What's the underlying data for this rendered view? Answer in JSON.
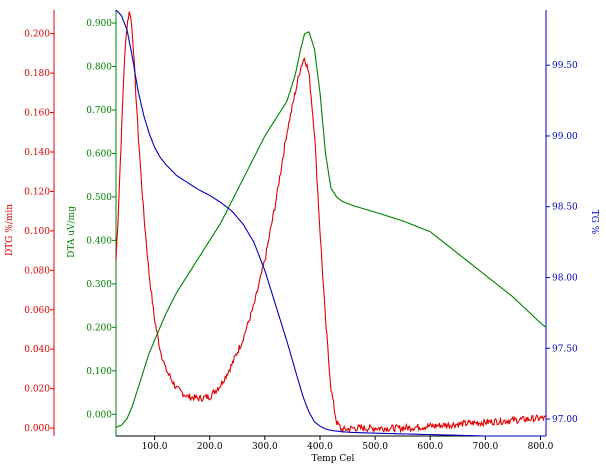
{
  "chart_data": {
    "type": "line",
    "title": "",
    "xlabel": "Temp Cel",
    "x_ticks": [
      "100.0",
      "200.0",
      "300.0",
      "400.0",
      "500.0",
      "600.0",
      "700.0",
      "800.0"
    ],
    "xlim": [
      30,
      810
    ],
    "grid": false,
    "axes": {
      "dtg": {
        "label": "DTG %/min",
        "color": "#e00000",
        "ylim": [
          -0.004,
          0.212
        ],
        "ticks": [
          "0.000",
          "0.020",
          "0.040",
          "0.060",
          "0.080",
          "0.100",
          "0.120",
          "0.140",
          "0.160",
          "0.180",
          "0.200"
        ]
      },
      "dta": {
        "label": "DTA uV/mg",
        "color": "#008000",
        "ylim": [
          -0.05,
          0.93
        ],
        "ticks": [
          "0.000",
          "0.100",
          "0.200",
          "0.300",
          "0.400",
          "0.500",
          "0.600",
          "0.700",
          "0.800",
          "0.900"
        ]
      },
      "tg": {
        "label": "TG %",
        "color": "#0000c0",
        "ylim": [
          96.88,
          99.89
        ],
        "ticks": [
          "97.00",
          "97.50",
          "98.00",
          "98.50",
          "99.00",
          "99.50"
        ]
      }
    },
    "series": [
      {
        "axis": "dtg",
        "color": "#e00000",
        "x": [
          30,
          35,
          40,
          45,
          50,
          55,
          60,
          65,
          70,
          80,
          90,
          100,
          110,
          120,
          140,
          160,
          180,
          200,
          220,
          240,
          260,
          280,
          300,
          320,
          340,
          355,
          365,
          372,
          380,
          390,
          400,
          410,
          420,
          430,
          440,
          460,
          500,
          550,
          600,
          650,
          700,
          750,
          800,
          810
        ],
        "y": [
          0.085,
          0.115,
          0.15,
          0.185,
          0.205,
          0.212,
          0.2,
          0.175,
          0.15,
          0.11,
          0.078,
          0.055,
          0.04,
          0.03,
          0.02,
          0.016,
          0.015,
          0.016,
          0.022,
          0.032,
          0.045,
          0.062,
          0.085,
          0.115,
          0.15,
          0.17,
          0.183,
          0.188,
          0.18,
          0.15,
          0.1,
          0.055,
          0.02,
          0.003,
          -0.001,
          0.0,
          0.0,
          0.0,
          0.001,
          0.002,
          0.003,
          0.004,
          0.005,
          0.005
        ],
        "noise": 0.0035
      },
      {
        "axis": "dta",
        "color": "#008000",
        "x": [
          30,
          40,
          50,
          60,
          70,
          80,
          90,
          100,
          120,
          140,
          160,
          180,
          200,
          220,
          240,
          260,
          280,
          300,
          320,
          340,
          355,
          365,
          372,
          380,
          390,
          400,
          410,
          420,
          430,
          440,
          460,
          500,
          550,
          600,
          620,
          650,
          700,
          750,
          800,
          810
        ],
        "y": [
          -0.03,
          -0.025,
          -0.01,
          0.02,
          0.06,
          0.1,
          0.14,
          0.17,
          0.23,
          0.28,
          0.32,
          0.36,
          0.4,
          0.44,
          0.49,
          0.54,
          0.59,
          0.64,
          0.68,
          0.72,
          0.78,
          0.84,
          0.875,
          0.88,
          0.84,
          0.74,
          0.6,
          0.52,
          0.5,
          0.49,
          0.48,
          0.465,
          0.445,
          0.42,
          0.4,
          0.37,
          0.32,
          0.27,
          0.21,
          0.2
        ]
      },
      {
        "axis": "tg",
        "color": "#0000c0",
        "x": [
          30,
          40,
          50,
          60,
          70,
          80,
          90,
          100,
          110,
          120,
          140,
          160,
          180,
          200,
          220,
          240,
          260,
          280,
          300,
          320,
          340,
          360,
          370,
          380,
          390,
          400,
          410,
          420,
          430,
          440,
          460,
          500,
          550,
          600,
          650,
          700,
          750,
          800,
          810
        ],
        "y": [
          99.89,
          99.85,
          99.75,
          99.55,
          99.32,
          99.15,
          99.02,
          98.92,
          98.85,
          98.8,
          98.72,
          98.67,
          98.62,
          98.58,
          98.53,
          98.47,
          98.38,
          98.25,
          98.05,
          97.8,
          97.55,
          97.28,
          97.15,
          97.05,
          96.98,
          96.95,
          96.93,
          96.92,
          96.915,
          96.91,
          96.905,
          96.9,
          96.895,
          96.89,
          96.885,
          96.88,
          96.88,
          96.88,
          96.88
        ]
      }
    ]
  }
}
